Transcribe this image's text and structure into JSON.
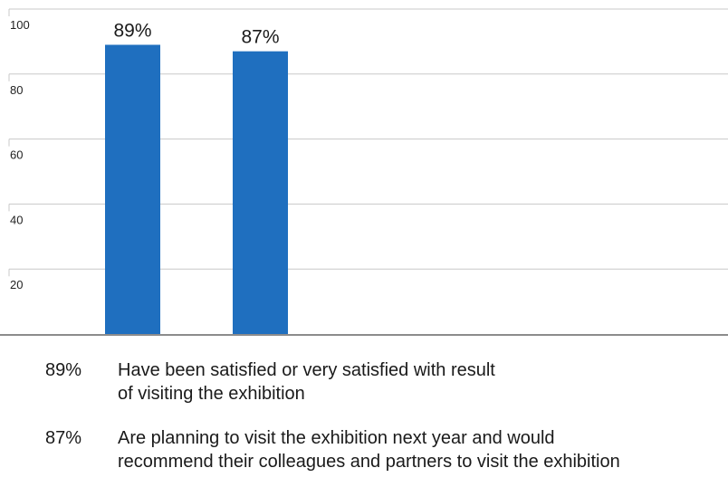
{
  "chart_data": {
    "type": "bar",
    "categories": [
      "Have been satisfied or very satisfied with result of visiting the exhibition",
      "Are planning to visit the exhibition next year and would recommend their colleagues and partners to visit the exhibition"
    ],
    "values": [
      89,
      87
    ],
    "data_labels": [
      "89%",
      "87%"
    ],
    "y_ticks": [
      "20",
      "40",
      "60",
      "80",
      "100"
    ],
    "ylim": [
      0,
      100
    ],
    "grid": true,
    "bar_color": "#1f6fbf"
  },
  "legend": {
    "items": [
      {
        "value": "89%",
        "lines": [
          "Have been satisfied or very satisfied with result",
          "of visiting the exhibition"
        ]
      },
      {
        "value": "87%",
        "lines": [
          "Are planning to visit the exhibition next year and would",
          "recommend their colleagues and partners to visit the exhibition"
        ]
      }
    ]
  }
}
